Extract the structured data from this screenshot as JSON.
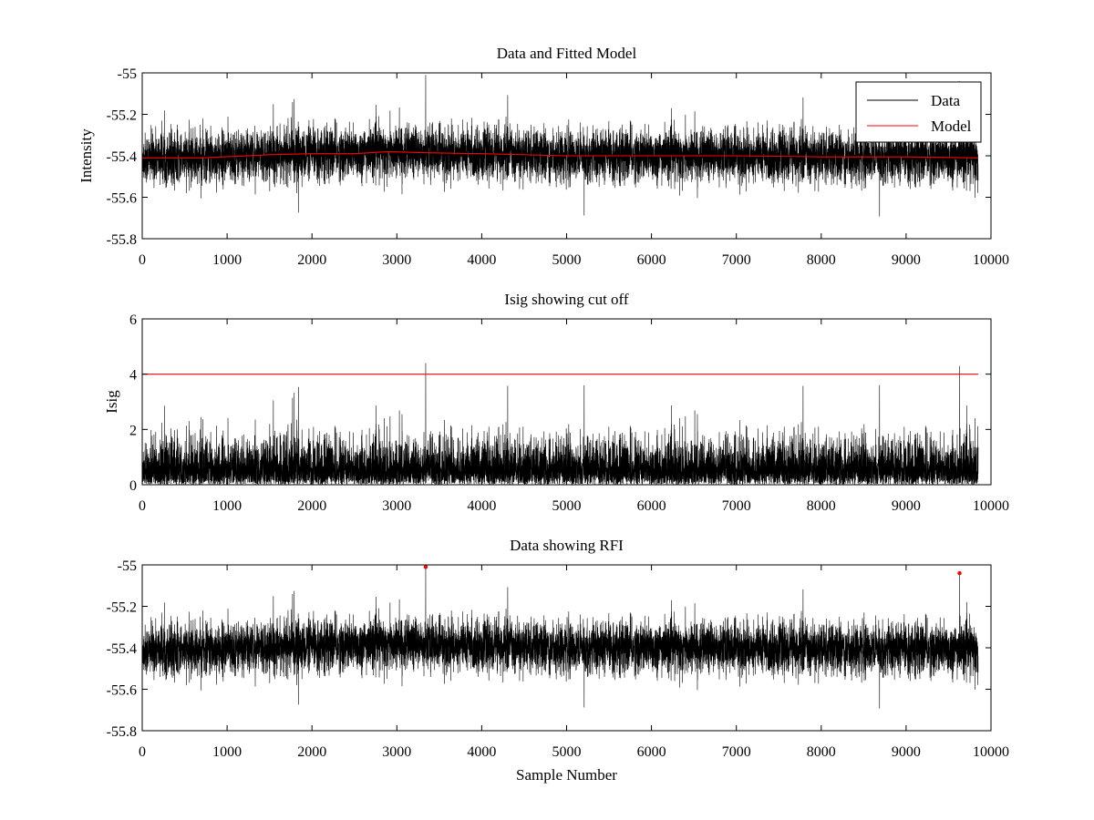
{
  "chart_data": [
    {
      "type": "line",
      "title": "Data and Fitted Model",
      "xlabel": "",
      "ylabel": "Intensity",
      "xlim": [
        0,
        10000
      ],
      "ylim": [
        -55.8,
        -55
      ],
      "xticks": [
        "0",
        "1000",
        "2000",
        "3000",
        "4000",
        "5000",
        "6000",
        "7000",
        "8000",
        "9000",
        "10000"
      ],
      "yticks": [
        "-55",
        "-55.2",
        "-55.4",
        "-55.6",
        "-55.8"
      ],
      "grid": false,
      "legend": {
        "placement": "top-right",
        "entries": [
          "Data",
          "Model"
        ]
      },
      "series": [
        {
          "name": "Data",
          "color": "#000000",
          "n_samples": 9850,
          "mean": -55.4,
          "typical_range": [
            -55.6,
            -55.2
          ],
          "max": -55.01,
          "min": -55.72
        },
        {
          "name": "Model",
          "color": "#ff0000",
          "x": [
            0,
            700,
            1500,
            2000,
            2500,
            2900,
            3300,
            4000,
            5000,
            6000,
            7000,
            8000,
            9000,
            9850
          ],
          "y": [
            -55.41,
            -55.41,
            -55.395,
            -55.39,
            -55.39,
            -55.38,
            -55.385,
            -55.39,
            -55.4,
            -55.4,
            -55.4,
            -55.405,
            -55.405,
            -55.41
          ]
        }
      ]
    },
    {
      "type": "line",
      "title": "Isig showing cut off",
      "xlabel": "",
      "ylabel": "Isig",
      "xlim": [
        0,
        10000
      ],
      "ylim": [
        0,
        6
      ],
      "xticks": [
        "0",
        "1000",
        "2000",
        "3000",
        "4000",
        "5000",
        "6000",
        "7000",
        "8000",
        "9000",
        "10000"
      ],
      "yticks": [
        "6",
        "4",
        "2",
        "0"
      ],
      "grid": false,
      "series": [
        {
          "name": "Isig",
          "color": "#000000",
          "n_samples": 9850,
          "typical_range": [
            0,
            2.5
          ],
          "max": 4.4
        },
        {
          "name": "Cut off",
          "color": "#ff0000",
          "x": [
            0,
            9850
          ],
          "y": [
            4,
            4
          ]
        }
      ]
    },
    {
      "type": "line",
      "title": "Data showing RFI",
      "xlabel": "Sample Number",
      "ylabel": "",
      "xlim": [
        0,
        10000
      ],
      "ylim": [
        -55.8,
        -55
      ],
      "xticks": [
        "0",
        "1000",
        "2000",
        "3000",
        "4000",
        "5000",
        "6000",
        "7000",
        "8000",
        "9000",
        "10000"
      ],
      "yticks": [
        "-55",
        "-55.2",
        "-55.4",
        "-55.6",
        "-55.8"
      ],
      "grid": false,
      "series": [
        {
          "name": "Data",
          "color": "#000000",
          "n_samples": 9850,
          "mean": -55.4,
          "typical_range": [
            -55.6,
            -55.2
          ]
        },
        {
          "name": "RFI",
          "color": "#ff0000",
          "marker": "dot",
          "x": [
            3340,
            9630
          ],
          "y": [
            -55.01,
            -55.04
          ]
        }
      ]
    }
  ]
}
